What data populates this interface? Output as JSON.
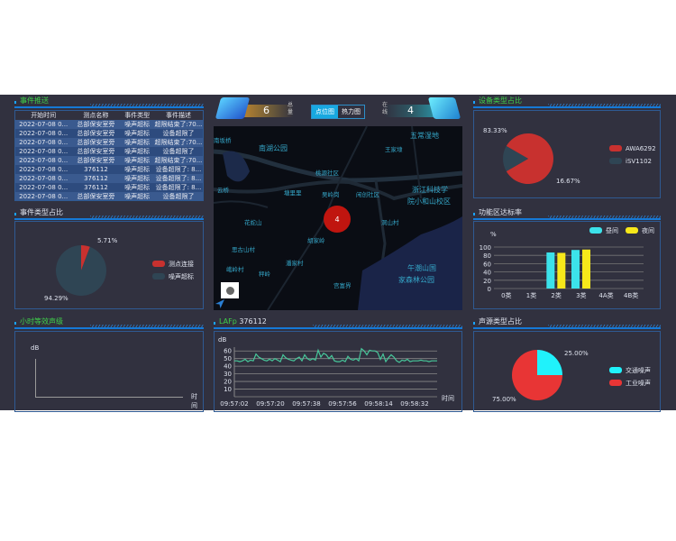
{
  "events": {
    "title": "事件推送",
    "columns": [
      "开始时间",
      "测点名称",
      "事件类型",
      "事件描述"
    ],
    "rows": [
      [
        "2022-07-08 0...",
        "总部保安室旁",
        "噪声超标",
        "超限结束了:70..."
      ],
      [
        "2022-07-08 0...",
        "总部保安室旁",
        "噪声超标",
        "设备超限了"
      ],
      [
        "2022-07-08 0...",
        "总部保安室旁",
        "噪声超标",
        "超限结束了:70..."
      ],
      [
        "2022-07-08 0...",
        "总部保安室旁",
        "噪声超标",
        "设备超限了"
      ],
      [
        "2022-07-08 0...",
        "总部保安室旁",
        "噪声超标",
        "超限结束了:70..."
      ],
      [
        "2022-07-08 0...",
        "376112",
        "噪声超标",
        "设备超限了: 8..."
      ],
      [
        "2022-07-08 0...",
        "376112",
        "噪声超标",
        "设备超限了: 8..."
      ],
      [
        "2022-07-08 0...",
        "376112",
        "噪声超标",
        "设备超限了: 8..."
      ],
      [
        "2022-07-08 0...",
        "总部保安室旁",
        "噪声超标",
        "设备超限了"
      ]
    ]
  },
  "event_type": {
    "title": "事件类型占比",
    "slices": [
      {
        "name": "测点连接",
        "pct": 5.71,
        "label": "5.71%",
        "color": "#c8312f"
      },
      {
        "name": "噪声超标",
        "pct": 94.29,
        "label": "94.29%",
        "color": "#2f4554"
      }
    ]
  },
  "hourly": {
    "title": "小时等效声级",
    "ylabel": "dB",
    "xlabel": "时间"
  },
  "header": {
    "total": "6",
    "total_label": "总量",
    "online": "4",
    "online_label": "在线",
    "tabs": [
      "点位图",
      "热力图"
    ],
    "active_tab": 0
  },
  "map": {
    "labels": [
      "南湖公园",
      "五常湿地",
      "王家埭",
      "桃源社区",
      "云桥",
      "塘里里",
      "吴岭岗",
      "闲创社区",
      "浙江科技学",
      "院小和山校区",
      "花蛇山",
      "洞山村",
      "胡家岭",
      "思古山村",
      "峨岭村",
      "秤岭",
      "潘家村",
      "午潮山国",
      "家森林公园",
      "宫富界",
      "南坂桥"
    ],
    "marker_count": "4",
    "marker_color": "#c0150f"
  },
  "lafp": {
    "title_prefix": "LAFp",
    "title_id": "376112",
    "ylabel": "dB",
    "xlabel": "时间",
    "yticks": [
      10,
      20,
      30,
      40,
      50,
      60
    ],
    "xticks": [
      "09:57:02",
      "09:57:20",
      "09:57:38",
      "09:57:56",
      "09:58:14",
      "09:58:32"
    ],
    "values": [
      47,
      47,
      46,
      47,
      49,
      46,
      48,
      47,
      56,
      52,
      50,
      48,
      47,
      49,
      47,
      50,
      48,
      46,
      55,
      51,
      49,
      48,
      47,
      50,
      52,
      47,
      55,
      50,
      48,
      50,
      48,
      61,
      52,
      57,
      55,
      50,
      54,
      47,
      46,
      46,
      48,
      46,
      53,
      49,
      48,
      50,
      47,
      63,
      60,
      55,
      61,
      60,
      60,
      58,
      49,
      56,
      46,
      51,
      55,
      52,
      47,
      45,
      48,
      47,
      49,
      46,
      47,
      47,
      47,
      48,
      47,
      47,
      46,
      47,
      47,
      47
    ],
    "color": "#47c79a"
  },
  "device": {
    "title": "设备类型占比",
    "slices": [
      {
        "name": "AWA6292",
        "pct": 83.33,
        "label": "83.33%",
        "color": "#c8312f"
      },
      {
        "name": "iSV1102",
        "pct": 16.67,
        "label": "16.67%",
        "color": "#2f4554"
      }
    ]
  },
  "func": {
    "title": "功能区达标率",
    "ylabel": "%",
    "categories": [
      "0类",
      "1类",
      "2类",
      "3类",
      "4A类",
      "4B类"
    ],
    "yticks": [
      0,
      20,
      40,
      60,
      80,
      100
    ],
    "series": [
      {
        "name": "昼间",
        "values": [
          null,
          null,
          87,
          93,
          null,
          null
        ],
        "color": "#3ce2ea"
      },
      {
        "name": "夜间",
        "values": [
          null,
          null,
          86,
          94,
          null,
          null
        ],
        "color": "#f7e81a"
      }
    ]
  },
  "source": {
    "title": "声源类型占比",
    "slices": [
      {
        "name": "交通噪声",
        "pct": 25,
        "label": "25.00%",
        "color": "#20f2fb"
      },
      {
        "name": "工业噪声",
        "pct": 75,
        "label": "75.00%",
        "color": "#e83535"
      }
    ]
  }
}
